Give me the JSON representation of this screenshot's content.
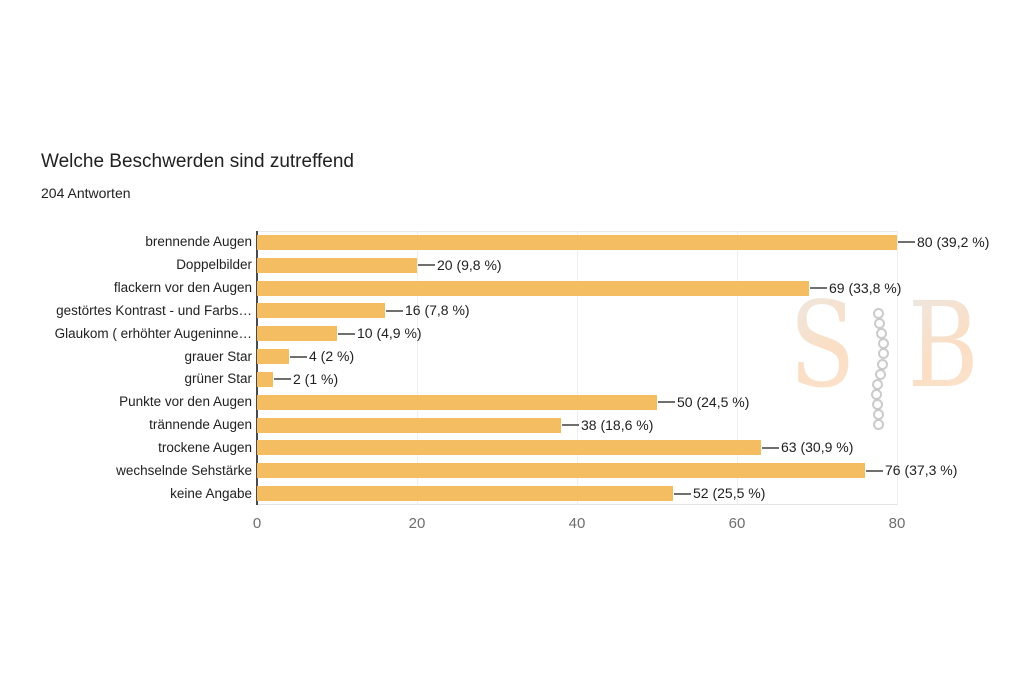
{
  "header": {
    "title": "Welche Beschwerden sind zutreffend",
    "subtitle": "204 Antworten"
  },
  "chart_data": {
    "type": "bar",
    "orientation": "horizontal",
    "title": "Welche Beschwerden sind zutreffend",
    "subtitle": "204 Antworten",
    "categories": [
      "brennende Augen",
      "Doppelbilder",
      "flackern vor den Augen",
      "gestörtes Kontrast - und Farbs…",
      "Glaukom ( erhöhter Augeninne…",
      "grauer Star",
      "grüner Star",
      "Punkte vor den Augen",
      "trännende Augen",
      "trockene Augen",
      "wechselnde Sehstärke",
      "keine Angabe"
    ],
    "values": [
      80,
      20,
      69,
      16,
      10,
      4,
      2,
      50,
      38,
      63,
      76,
      52
    ],
    "value_labels": [
      "80 (39,2 %)",
      "20 (9,8 %)",
      "69 (33,8 %)",
      "16 (7,8 %)",
      "10 (4,9 %)",
      "4 (2 %)",
      "2 (1 %)",
      "50 (24,5 %)",
      "38 (18,6 %)",
      "63 (30,9 %)",
      "76 (37,3 %)",
      "52 (25,5 %)"
    ],
    "xlabel": "",
    "ylabel": "",
    "xlim": [
      0,
      80
    ],
    "x_ticks": [
      0,
      20,
      40,
      60,
      80
    ],
    "grid": true,
    "legend": "none",
    "bar_color": "#F5BD62"
  },
  "watermark": {
    "letter_left": "S",
    "letter_right": "B",
    "accent_color": "#F8CDA6"
  },
  "colors": {
    "bar": "#F5BD62",
    "text": "#212121",
    "tick_text": "#6E6E6E",
    "gridline": "#EFEFEF",
    "axis": "#4A4A4A"
  }
}
